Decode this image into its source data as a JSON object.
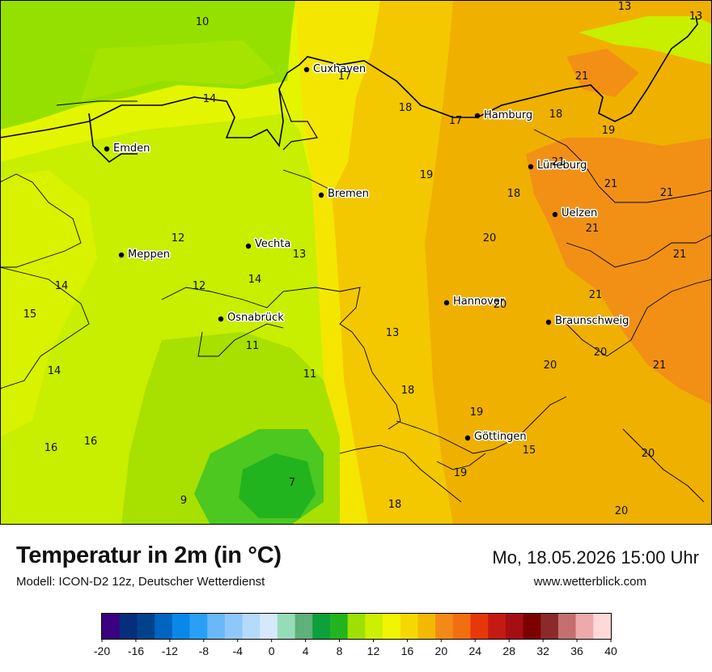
{
  "title": "Temperatur in 2m (in °C)",
  "model_text": "Modell: ICON-D2 12z, Deutscher Wetterdienst",
  "datetime": "Mo, 18.05.2026 15:00 Uhr",
  "website": "www.wetterblick.com",
  "colors": {
    "sea_light": "#96e000",
    "temp_9_11": "#a8e000",
    "temp_12_14": "#c8ee00",
    "temp_15_16": "#e4f500",
    "temp_17_18": "#f5e600",
    "temp_19_20": "#f3c800",
    "temp_21": "#f0b000",
    "temp_22": "#f29016",
    "temp_7": "#22b41e",
    "temp_8": "#4cc820"
  },
  "cities": [
    {
      "name": "Cuxhaven"
    },
    {
      "name": "Hamburg"
    },
    {
      "name": "Emden"
    },
    {
      "name": "Lüneburg"
    },
    {
      "name": "Bremen"
    },
    {
      "name": "Uelzen"
    },
    {
      "name": "Meppen"
    },
    {
      "name": "Vechta"
    },
    {
      "name": "Hannover"
    },
    {
      "name": "Osnabrück"
    },
    {
      "name": "Braunschweig"
    },
    {
      "name": "Göttingen"
    }
  ],
  "temperatures": [
    "10",
    "13",
    "13",
    "17",
    "21",
    "14",
    "18",
    "17",
    "18",
    "19",
    "21",
    "18",
    "21",
    "19",
    "21",
    "21",
    "20",
    "12",
    "13",
    "21",
    "14",
    "12",
    "21",
    "15",
    "20",
    "13",
    "11",
    "20",
    "14",
    "20",
    "21",
    "11",
    "18",
    "19",
    "14",
    "16",
    "16",
    "15",
    "20",
    "19",
    "7",
    "9",
    "18",
    "20"
  ],
  "legend": {
    "colors": [
      "#3a007f",
      "#052f7a",
      "#00428a",
      "#0064c0",
      "#0a88e8",
      "#2aa0f5",
      "#6ab8f7",
      "#8ec8f9",
      "#b6daf9",
      "#d6e8fb",
      "#96dcb8",
      "#5fb07a",
      "#0ea03a",
      "#22b41e",
      "#9ee000",
      "#cdef00",
      "#f0f500",
      "#f6d800",
      "#f3b800",
      "#f38a18",
      "#f26f10",
      "#e6380a",
      "#c41a12",
      "#a60e14",
      "#7c0000",
      "#8a2a2a",
      "#c47070",
      "#ecaaaa",
      "#ffd8d8"
    ],
    "tick_labels": [
      "-20",
      "-16",
      "-12",
      "-8",
      "-4",
      "0",
      "4",
      "8",
      "12",
      "16",
      "20",
      "24",
      "28",
      "32",
      "36",
      "40"
    ]
  }
}
